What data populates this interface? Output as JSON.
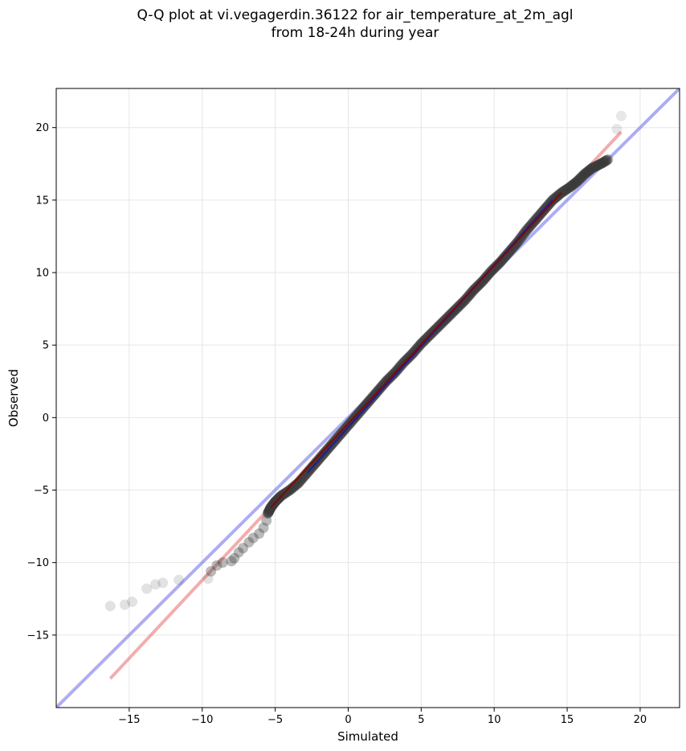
{
  "chart_data": {
    "type": "scatter",
    "title": "Q-Q plot at vi.vegagerdin.36122 for air_temperature_at_2m_agl",
    "subtitle": "from 18-24h during year",
    "xlabel": "Simulated",
    "ylabel": "Observed",
    "xlim": [
      -20.0,
      22.7
    ],
    "ylim": [
      -20.0,
      22.7
    ],
    "xticks": [
      -15,
      -10,
      -5,
      0,
      5,
      10,
      15,
      20
    ],
    "yticks": [
      -15,
      -10,
      -5,
      0,
      5,
      10,
      15,
      20
    ],
    "xtick_labels": [
      "−15",
      "−10",
      "−5",
      "0",
      "5",
      "10",
      "15",
      "20"
    ],
    "ytick_labels": [
      "−15",
      "−10",
      "−5",
      "0",
      "5",
      "10",
      "15",
      "20"
    ],
    "grid": true,
    "colors": {
      "points": "#3a3a3a",
      "identity_line": "#6a6ae8",
      "fit_line": "#e86a6a",
      "thin_line_blue": "#1a1aa0",
      "thin_line_red": "#8b0000"
    },
    "series": [
      {
        "type": "scatter",
        "points": [
          [
            -16.3,
            -13.0
          ],
          [
            -15.3,
            -12.9
          ],
          [
            -14.8,
            -12.7
          ],
          [
            -13.8,
            -11.8
          ],
          [
            -13.2,
            -11.5
          ],
          [
            -12.7,
            -11.4
          ],
          [
            -11.6,
            -11.2
          ],
          [
            -9.6,
            -11.1
          ],
          [
            -9.4,
            -10.6
          ],
          [
            -9.0,
            -10.2
          ],
          [
            -8.6,
            -10.0
          ],
          [
            -8.0,
            -9.9
          ],
          [
            -7.8,
            -9.7
          ],
          [
            -7.5,
            -9.3
          ],
          [
            -7.2,
            -9.0
          ],
          [
            -6.8,
            -8.6
          ],
          [
            -6.5,
            -8.3
          ],
          [
            -6.1,
            -8.0
          ],
          [
            -5.8,
            -7.6
          ],
          [
            -5.6,
            -7.1
          ],
          [
            -5.5,
            -6.6
          ],
          [
            -5.3,
            -6.2
          ],
          [
            -5.0,
            -5.8
          ],
          [
            -4.6,
            -5.4
          ],
          [
            -4.0,
            -5.0
          ],
          [
            -3.4,
            -4.5
          ],
          [
            -2.8,
            -3.8
          ],
          [
            -2.2,
            -3.1
          ],
          [
            -1.6,
            -2.4
          ],
          [
            -1.0,
            -1.7
          ],
          [
            -0.4,
            -1.0
          ],
          [
            0.2,
            -0.3
          ],
          [
            0.8,
            0.4
          ],
          [
            1.4,
            1.1
          ],
          [
            2.0,
            1.8
          ],
          [
            2.6,
            2.5
          ],
          [
            3.2,
            3.1
          ],
          [
            3.8,
            3.8
          ],
          [
            4.4,
            4.4
          ],
          [
            5.0,
            5.1
          ],
          [
            5.6,
            5.7
          ],
          [
            6.2,
            6.3
          ],
          [
            6.8,
            6.9
          ],
          [
            7.4,
            7.5
          ],
          [
            8.0,
            8.1
          ],
          [
            8.6,
            8.8
          ],
          [
            9.2,
            9.4
          ],
          [
            9.8,
            10.1
          ],
          [
            10.4,
            10.7
          ],
          [
            11.0,
            11.4
          ],
          [
            11.6,
            12.1
          ],
          [
            12.2,
            12.9
          ],
          [
            12.8,
            13.6
          ],
          [
            13.4,
            14.3
          ],
          [
            14.0,
            15.0
          ],
          [
            14.6,
            15.5
          ],
          [
            15.2,
            15.9
          ],
          [
            15.7,
            16.3
          ],
          [
            16.2,
            16.8
          ],
          [
            16.7,
            17.2
          ],
          [
            17.3,
            17.5
          ],
          [
            17.8,
            17.8
          ],
          [
            18.4,
            19.9
          ],
          [
            18.7,
            20.8
          ]
        ]
      },
      {
        "type": "line",
        "role": "identity",
        "points": [
          [
            -20.0,
            -20.0
          ],
          [
            22.7,
            22.7
          ]
        ]
      },
      {
        "type": "line",
        "role": "fit",
        "points": [
          [
            -16.3,
            -18.0
          ],
          [
            18.7,
            19.7
          ]
        ]
      }
    ]
  }
}
